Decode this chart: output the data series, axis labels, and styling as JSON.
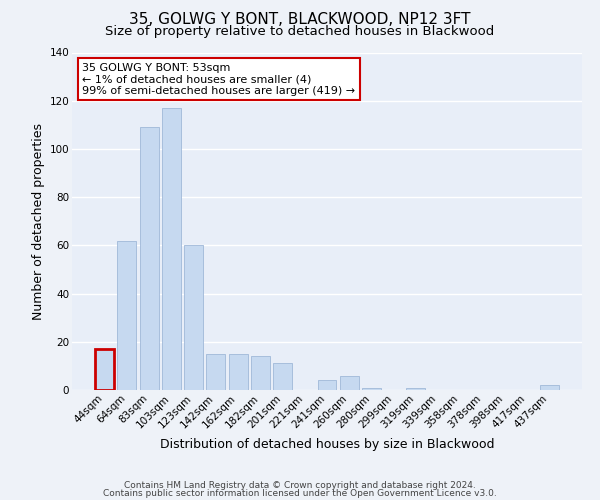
{
  "title": "35, GOLWG Y BONT, BLACKWOOD, NP12 3FT",
  "subtitle": "Size of property relative to detached houses in Blackwood",
  "xlabel": "Distribution of detached houses by size in Blackwood",
  "ylabel": "Number of detached properties",
  "bar_labels": [
    "44sqm",
    "64sqm",
    "83sqm",
    "103sqm",
    "123sqm",
    "142sqm",
    "162sqm",
    "182sqm",
    "201sqm",
    "221sqm",
    "241sqm",
    "260sqm",
    "280sqm",
    "299sqm",
    "319sqm",
    "339sqm",
    "358sqm",
    "378sqm",
    "398sqm",
    "417sqm",
    "437sqm"
  ],
  "bar_values": [
    17,
    62,
    109,
    117,
    60,
    15,
    15,
    14,
    11,
    0,
    4,
    6,
    1,
    0,
    1,
    0,
    0,
    0,
    0,
    0,
    2
  ],
  "bar_color": "#c6d9f0",
  "bar_edge_color": "#a0b8d8",
  "highlight_bar_index": 0,
  "highlight_outline_color": "#cc0000",
  "ylim": [
    0,
    140
  ],
  "yticks": [
    0,
    20,
    40,
    60,
    80,
    100,
    120,
    140
  ],
  "annotation_text": "35 GOLWG Y BONT: 53sqm\n← 1% of detached houses are smaller (4)\n99% of semi-detached houses are larger (419) →",
  "annotation_box_color": "#ffffff",
  "annotation_box_edge": "#cc0000",
  "footer_line1": "Contains HM Land Registry data © Crown copyright and database right 2024.",
  "footer_line2": "Contains public sector information licensed under the Open Government Licence v3.0.",
  "background_color": "#eef2f8",
  "plot_bg_color": "#e8eef8",
  "grid_color": "#ffffff",
  "title_fontsize": 11,
  "subtitle_fontsize": 9.5,
  "axis_label_fontsize": 9,
  "tick_fontsize": 7.5,
  "annotation_fontsize": 8,
  "footer_fontsize": 6.5
}
